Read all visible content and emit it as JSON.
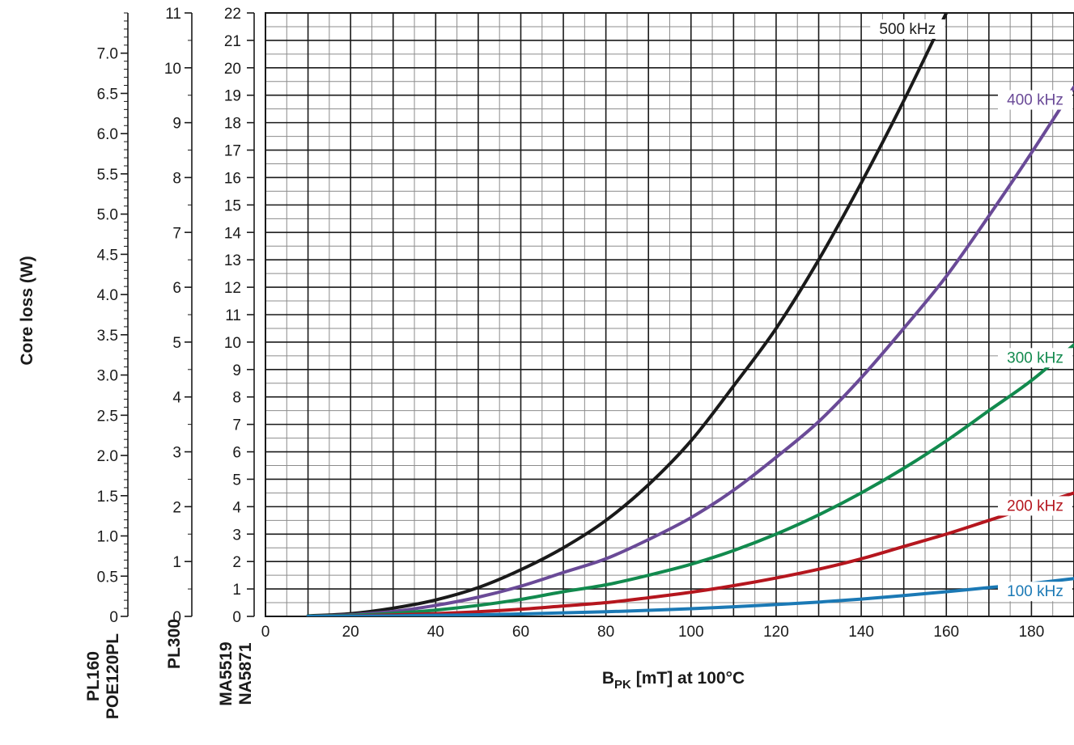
{
  "chart_data": {
    "type": "line",
    "title": "",
    "ylabel": "Core loss (W)",
    "xlabel": {
      "main": "B",
      "sub": "PK",
      "rest": " [mT] at 100°C"
    },
    "x_ticks": [
      "0",
      "20",
      "40",
      "60",
      "80",
      "100",
      "120",
      "140",
      "160",
      "180"
    ],
    "xlim": [
      0,
      190
    ],
    "grid": true,
    "legend": "inline labels at right end of curves",
    "y_axes": [
      {
        "materials": [
          "PL160",
          "POE120PL"
        ],
        "ylim": [
          0,
          7.5
        ],
        "tick_labels": [
          "0",
          "0.5",
          "1.0",
          "1.5",
          "2.0",
          "2.5",
          "3.0",
          "3.5",
          "4.0",
          "4.5",
          "5.0",
          "5.5",
          "6.0",
          "6.5",
          "7.0"
        ]
      },
      {
        "materials": [
          "PL300"
        ],
        "ylim": [
          0,
          11
        ],
        "tick_labels": [
          "0",
          "1",
          "2",
          "3",
          "4",
          "5",
          "6",
          "7",
          "8",
          "9",
          "10",
          "11"
        ]
      },
      {
        "materials": [
          "MA5519",
          "NA5871"
        ],
        "ylim": [
          0,
          22
        ],
        "tick_labels": [
          "0",
          "1",
          "2",
          "3",
          "4",
          "5",
          "6",
          "7",
          "8",
          "9",
          "10",
          "11",
          "12",
          "13",
          "14",
          "15",
          "16",
          "17",
          "18",
          "19",
          "20",
          "21",
          "22"
        ]
      }
    ],
    "series": [
      {
        "name": "500 kHz",
        "color": "#1a1a1a",
        "x": [
          10,
          20,
          30,
          40,
          50,
          60,
          70,
          80,
          90,
          100,
          110,
          120,
          130,
          140,
          150,
          160
        ],
        "y": [
          0.02,
          0.1,
          0.3,
          0.6,
          1.05,
          1.7,
          2.5,
          3.5,
          4.8,
          6.4,
          8.4,
          10.5,
          13.0,
          15.8,
          18.8,
          22.0
        ]
      },
      {
        "name": "400 kHz",
        "color": "#6a4a97",
        "x": [
          10,
          20,
          30,
          40,
          50,
          60,
          70,
          80,
          90,
          100,
          110,
          120,
          130,
          140,
          150,
          160,
          170,
          180,
          190
        ],
        "y": [
          0.01,
          0.06,
          0.18,
          0.4,
          0.7,
          1.1,
          1.6,
          2.1,
          2.8,
          3.6,
          4.6,
          5.8,
          7.1,
          8.7,
          10.5,
          12.4,
          14.6,
          16.9,
          19.3
        ]
      },
      {
        "name": "300 kHz",
        "color": "#128a4e",
        "x": [
          10,
          20,
          30,
          40,
          50,
          60,
          70,
          80,
          90,
          100,
          110,
          120,
          130,
          140,
          150,
          160,
          170,
          180,
          190
        ],
        "y": [
          0.01,
          0.04,
          0.11,
          0.23,
          0.4,
          0.62,
          0.9,
          1.15,
          1.5,
          1.9,
          2.4,
          3.0,
          3.7,
          4.5,
          5.4,
          6.4,
          7.5,
          8.6,
          9.9
        ]
      },
      {
        "name": "200 kHz",
        "color": "#b5161e",
        "x": [
          10,
          20,
          30,
          40,
          50,
          60,
          70,
          80,
          90,
          100,
          110,
          120,
          130,
          140,
          150,
          160,
          170,
          180,
          190
        ],
        "y": [
          0.0,
          0.02,
          0.05,
          0.1,
          0.17,
          0.26,
          0.38,
          0.5,
          0.68,
          0.88,
          1.12,
          1.4,
          1.72,
          2.1,
          2.55,
          3.0,
          3.5,
          4.0,
          4.5
        ]
      },
      {
        "name": "100 kHz",
        "color": "#1b79b5",
        "x": [
          10,
          20,
          30,
          40,
          50,
          60,
          70,
          80,
          90,
          100,
          110,
          120,
          130,
          140,
          150,
          160,
          170,
          180,
          190
        ],
        "y": [
          0.0,
          0.01,
          0.02,
          0.04,
          0.06,
          0.09,
          0.13,
          0.17,
          0.22,
          0.28,
          0.35,
          0.43,
          0.52,
          0.63,
          0.76,
          0.9,
          1.05,
          1.2,
          1.38
        ]
      }
    ]
  }
}
